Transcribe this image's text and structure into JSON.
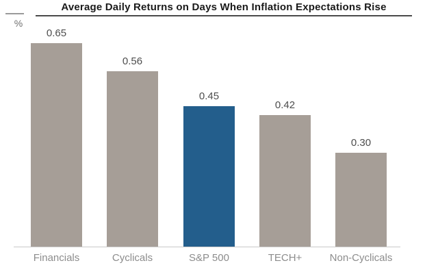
{
  "chart_data": {
    "type": "bar",
    "title": "Average Daily Returns on Days When Inflation Expectations Rise",
    "ylabel": "%",
    "xlabel": "",
    "categories": [
      "Financials",
      "Cyclicals",
      "S&P 500",
      "TECH+",
      "Non-Cyclicals"
    ],
    "values": [
      0.65,
      0.56,
      0.45,
      0.42,
      0.3
    ],
    "data_labels": [
      "0.65",
      "0.56",
      "0.45",
      "0.42",
      "0.30"
    ],
    "ylim": [
      0,
      0.7
    ],
    "grid": false,
    "legend": false,
    "bar_color": "#A69E97",
    "highlight_color": "#235E8C",
    "highlight_index": 2,
    "highlight_category": "S&P 500",
    "value_label_color": "#4D4D4D",
    "category_label_color": "#8C8C8C",
    "axis_line_color": "#C9C9C9"
  }
}
